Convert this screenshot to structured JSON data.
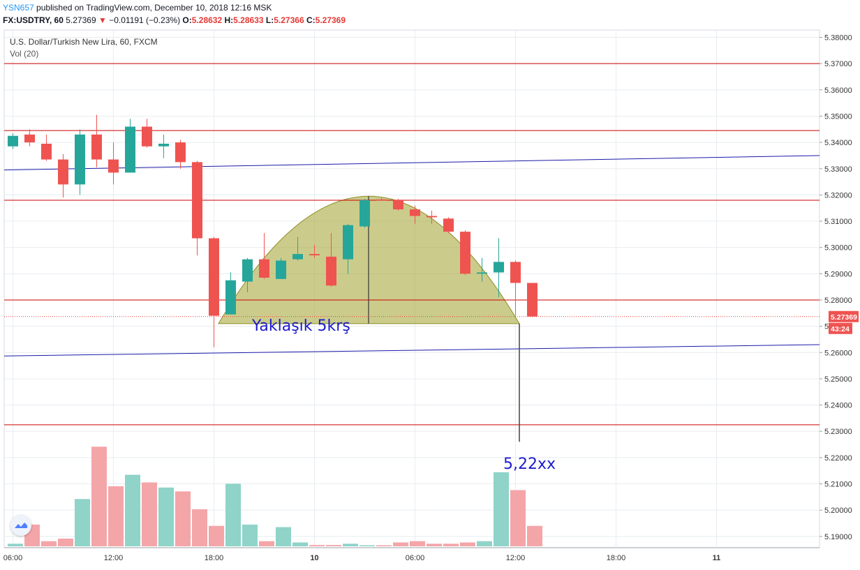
{
  "header": {
    "author": "YSN657",
    "published_text": "published on TradingView.com, December 10, 2018 12:16 MSK",
    "symbol_line": "FX:USDTRY, 60",
    "last": "5.27369",
    "down_arrow": "▼",
    "change": "−0.01191 (−0.23%)",
    "o_label": "O:",
    "o_value": "5.28632",
    "h_label": "H:",
    "h_value": "5.28633",
    "l_label": "L:",
    "l_value": "5.27366",
    "c_label": "C:",
    "c_value": "5.27369"
  },
  "legend": {
    "symbol_name": "U.S. Dollar/Turkish New Lira, 60, FXCM",
    "volume_name": "Vol (20)"
  },
  "chart_data": {
    "type": "candlestick",
    "price_axis": {
      "range": [
        5.1865,
        5.382
      ],
      "ticks": [
        "5.38000",
        "5.37000",
        "5.36000",
        "5.35000",
        "5.34000",
        "5.33000",
        "5.32000",
        "5.31000",
        "5.30000",
        "5.29000",
        "5.28000",
        "5.27000",
        "5.26000",
        "5.25000",
        "5.24000",
        "5.23000",
        "5.22000",
        "5.21000",
        "5.20000",
        "5.19000"
      ]
    },
    "time_axis": {
      "ticks": [
        "06:00",
        "12:00",
        "18:00",
        "10",
        "06:00",
        "12:00",
        "18:00",
        "11"
      ],
      "tick_bar_index": [
        0,
        6,
        12,
        18,
        24,
        30,
        36,
        42
      ]
    },
    "candles": [
      {
        "o": 5.3385,
        "h": 5.3435,
        "l": 5.3375,
        "c": 5.3425
      },
      {
        "o": 5.343,
        "h": 5.345,
        "l": 5.3385,
        "c": 5.34
      },
      {
        "o": 5.3395,
        "h": 5.343,
        "l": 5.333,
        "c": 5.3335
      },
      {
        "o": 5.3335,
        "h": 5.3355,
        "l": 5.319,
        "c": 5.324
      },
      {
        "o": 5.324,
        "h": 5.345,
        "l": 5.32,
        "c": 5.343
      },
      {
        "o": 5.343,
        "h": 5.3505,
        "l": 5.3305,
        "c": 5.3335
      },
      {
        "o": 5.3335,
        "h": 5.34,
        "l": 5.324,
        "c": 5.3285
      },
      {
        "o": 5.3285,
        "h": 5.349,
        "l": 5.3285,
        "c": 5.346
      },
      {
        "o": 5.346,
        "h": 5.349,
        "l": 5.338,
        "c": 5.3385
      },
      {
        "o": 5.3385,
        "h": 5.343,
        "l": 5.334,
        "c": 5.3395
      },
      {
        "o": 5.34,
        "h": 5.341,
        "l": 5.33,
        "c": 5.3325
      },
      {
        "o": 5.3325,
        "h": 5.333,
        "l": 5.297,
        "c": 5.3035
      },
      {
        "o": 5.3035,
        "h": 5.304,
        "l": 5.262,
        "c": 5.274
      },
      {
        "o": 5.2745,
        "h": 5.2905,
        "l": 5.2745,
        "c": 5.2875
      },
      {
        "o": 5.287,
        "h": 5.296,
        "l": 5.283,
        "c": 5.2955
      },
      {
        "o": 5.2955,
        "h": 5.3055,
        "l": 5.288,
        "c": 5.2885
      },
      {
        "o": 5.288,
        "h": 5.296,
        "l": 5.288,
        "c": 5.295
      },
      {
        "o": 5.2955,
        "h": 5.304,
        "l": 5.295,
        "c": 5.2975
      },
      {
        "o": 5.2975,
        "h": 5.301,
        "l": 5.296,
        "c": 5.297
      },
      {
        "o": 5.2965,
        "h": 5.3055,
        "l": 5.285,
        "c": 5.2855
      },
      {
        "o": 5.2955,
        "h": 5.309,
        "l": 5.29,
        "c": 5.3085
      },
      {
        "o": 5.308,
        "h": 5.3185,
        "l": 5.3075,
        "c": 5.318
      },
      {
        "o": 5.3183,
        "h": 5.3188,
        "l": 5.3178,
        "c": 5.3182
      },
      {
        "o": 5.318,
        "h": 5.3185,
        "l": 5.314,
        "c": 5.3145
      },
      {
        "o": 5.3145,
        "h": 5.316,
        "l": 5.309,
        "c": 5.312
      },
      {
        "o": 5.312,
        "h": 5.314,
        "l": 5.309,
        "c": 5.3115
      },
      {
        "o": 5.311,
        "h": 5.3115,
        "l": 5.3055,
        "c": 5.306
      },
      {
        "o": 5.306,
        "h": 5.3065,
        "l": 5.2895,
        "c": 5.29
      },
      {
        "o": 5.29,
        "h": 5.296,
        "l": 5.287,
        "c": 5.2905
      },
      {
        "o": 5.2905,
        "h": 5.3035,
        "l": 5.281,
        "c": 5.2945
      },
      {
        "o": 5.2945,
        "h": 5.295,
        "l": 5.274,
        "c": 5.2865
      },
      {
        "o": 5.2865,
        "h": 5.2865,
        "l": 5.2735,
        "c": 5.2737
      }
    ],
    "volume": {
      "max": 100,
      "values": [
        2,
        17,
        4,
        6,
        37,
        78,
        47,
        56,
        50,
        46,
        43,
        29,
        16,
        49,
        17,
        4,
        15,
        3,
        1,
        1,
        2,
        0,
        0,
        3,
        4,
        2,
        2,
        3,
        4,
        58,
        44,
        16
      ],
      "up_color": "#8fd3c9",
      "down_color": "#f4a5a8"
    },
    "horizontal_lines": [
      5.37,
      5.3445,
      5.318,
      5.28,
      5.2325
    ],
    "trend_lines": [
      {
        "from": [
          5.3295,
          5.335
        ]
      },
      {
        "from": [
          5.2587,
          5.263
        ]
      }
    ],
    "dotted_price_line": 5.27369,
    "dome_annotation": {
      "label": "Yaklaşık 5krş",
      "base_price": 5.271,
      "peak_price": 5.3195
    },
    "target_annotation": {
      "label": "5,22xx",
      "top_price": 5.271,
      "bottom_price": 5.226
    },
    "last_price_badge": "5.27369",
    "countdown_badge": "43:24",
    "colors": {
      "up": "#26a69a",
      "down": "#ef5350",
      "hline": "#cc0000",
      "trend": "#1a1aaa",
      "dome_fill": "#a9aa3d",
      "dome_stroke": "#8d8d24",
      "annotation_text": "#1c1ccc",
      "grid": "#e8ecf0"
    }
  }
}
